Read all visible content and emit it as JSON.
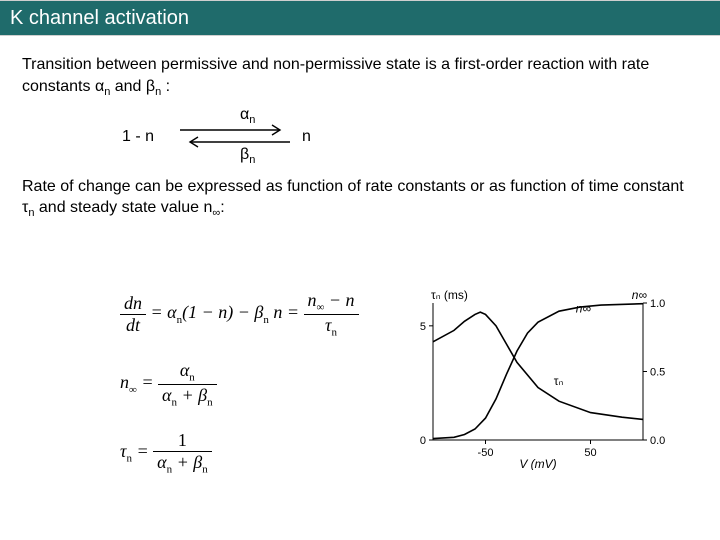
{
  "header": {
    "title": "K channel activation"
  },
  "text": {
    "para1a": "Transition between permissive and non-permissive state is a first-order reaction with rate constants ",
    "alpha": "α",
    "para1b": " and ",
    "beta": "β",
    "para1c": " :",
    "para2a": "Rate of change can be expressed as function of rate constants or as function of time constant ",
    "tau": "τ",
    "para2b": " and steady state value n",
    "inf": "∞",
    "colon": ":",
    "sub_n": "n"
  },
  "reaction": {
    "left": "1 - n",
    "right": "n",
    "forward": "α",
    "forward_sub": "n",
    "backward": "β",
    "backward_sub": "n",
    "arrow_color": "#000000"
  },
  "equations": {
    "eq1": {
      "lhs_num": "dn",
      "lhs_den": "dt",
      "mid": " = α",
      "mid2": "(1 − n) − β",
      "mid3": " n = ",
      "rhs_num_a": "n",
      "rhs_num_b": " − n",
      "rhs_den": "τ"
    },
    "eq2": {
      "lhs": "n",
      "eq": " = ",
      "num": "α",
      "den_a": "α",
      "den_plus": " + β"
    },
    "eq3": {
      "lhs": "τ",
      "eq": " = ",
      "num": "1",
      "den_a": "α",
      "den_plus": " + β"
    }
  },
  "chart": {
    "type": "line",
    "background_color": "#ffffff",
    "axis_color": "#000000",
    "grid_color": "#000000",
    "line_width": 1.6,
    "xlim": [
      -100,
      100
    ],
    "xticks": [
      -50,
      50
    ],
    "xlabel": "V (mV)",
    "y_left": {
      "label": "τₙ (ms)",
      "lim": [
        0,
        6
      ],
      "ticks": [
        0,
        5
      ]
    },
    "y_right": {
      "label": "n∞",
      "lim": [
        0,
        1.0
      ],
      "ticks": [
        0,
        0.5,
        1.0
      ]
    },
    "series": {
      "tau_n": {
        "color": "#000000",
        "x": [
          -100,
          -80,
          -70,
          -60,
          -55,
          -50,
          -40,
          -30,
          -20,
          0,
          20,
          50,
          80,
          100
        ],
        "y": [
          4.3,
          4.8,
          5.2,
          5.5,
          5.6,
          5.5,
          5.0,
          4.2,
          3.4,
          2.3,
          1.7,
          1.2,
          1.0,
          0.9
        ]
      },
      "n_inf": {
        "color": "#000000",
        "x": [
          -100,
          -80,
          -70,
          -60,
          -50,
          -40,
          -30,
          -20,
          -10,
          0,
          20,
          40,
          60,
          100
        ],
        "y": [
          0.01,
          0.02,
          0.04,
          0.08,
          0.16,
          0.3,
          0.48,
          0.65,
          0.78,
          0.86,
          0.94,
          0.97,
          0.985,
          0.995
        ]
      }
    },
    "annotations": {
      "tau_label": {
        "text": "τₙ",
        "x": 15,
        "y_left": 2.4
      },
      "ninf_label": {
        "text": "n∞",
        "x": 36,
        "y_right": 0.93
      }
    },
    "label_fontsize": 12,
    "tick_fontsize": 11
  }
}
